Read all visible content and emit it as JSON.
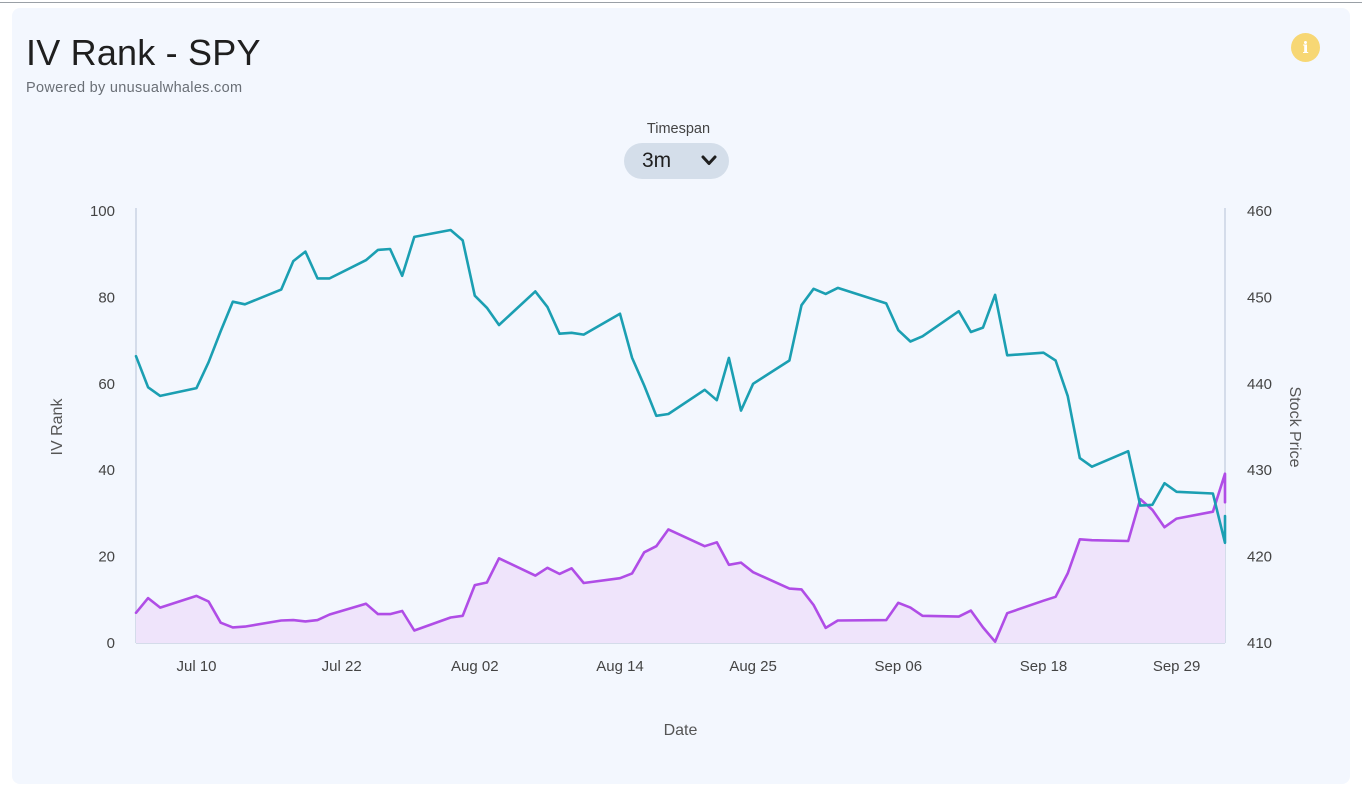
{
  "header": {
    "title": "IV Rank - SPY",
    "subtitle": "Powered by unusualwhales.com",
    "info_icon": "info-icon"
  },
  "timespan": {
    "label": "Timespan",
    "selected": "3m"
  },
  "colors": {
    "price": "#1b9fb2",
    "iv_rank": "#b04de6",
    "iv_fill": "#efe4fb",
    "axis": "#c9d3e3"
  },
  "chart_data": {
    "type": "line",
    "xlabel": "Date",
    "ylabel_left": "IV Rank",
    "ylabel_right": "Stock Price",
    "ylim_left": [
      0,
      100
    ],
    "ylim_right": [
      410,
      460
    ],
    "yticks_left": [
      0,
      20,
      40,
      60,
      80,
      100
    ],
    "yticks_right": [
      410,
      420,
      430,
      440,
      450,
      460
    ],
    "x_range": [
      "2023-07-05",
      "2023-10-03"
    ],
    "x_ticks": [
      {
        "date": "2023-07-10",
        "label": "Jul 10"
      },
      {
        "date": "2023-07-22",
        "label": "Jul 22"
      },
      {
        "date": "2023-08-02",
        "label": "Aug 02"
      },
      {
        "date": "2023-08-14",
        "label": "Aug 14"
      },
      {
        "date": "2023-08-25",
        "label": "Aug 25"
      },
      {
        "date": "2023-09-06",
        "label": "Sep 06"
      },
      {
        "date": "2023-09-18",
        "label": "Sep 18"
      },
      {
        "date": "2023-09-29",
        "label": "Sep 29"
      }
    ],
    "grid": false,
    "series": [
      {
        "name": "Stock Price",
        "axis": "right",
        "points": [
          [
            "2023-07-05",
            443.2
          ],
          [
            "2023-07-06",
            439.6
          ],
          [
            "2023-07-07",
            438.6
          ],
          [
            "2023-07-10",
            439.5
          ],
          [
            "2023-07-11",
            442.5
          ],
          [
            "2023-07-12",
            446.1
          ],
          [
            "2023-07-13",
            449.5
          ],
          [
            "2023-07-14",
            449.2
          ],
          [
            "2023-07-17",
            450.9
          ],
          [
            "2023-07-18",
            454.2
          ],
          [
            "2023-07-19",
            455.3
          ],
          [
            "2023-07-20",
            452.2
          ],
          [
            "2023-07-21",
            452.2
          ],
          [
            "2023-07-24",
            454.3
          ],
          [
            "2023-07-25",
            455.5
          ],
          [
            "2023-07-26",
            455.6
          ],
          [
            "2023-07-27",
            452.5
          ],
          [
            "2023-07-28",
            457.0
          ],
          [
            "2023-07-31",
            457.8
          ],
          [
            "2023-08-01",
            456.6
          ],
          [
            "2023-08-02",
            450.2
          ],
          [
            "2023-08-03",
            448.8
          ],
          [
            "2023-08-04",
            446.8
          ],
          [
            "2023-08-07",
            450.7
          ],
          [
            "2023-08-08",
            448.9
          ],
          [
            "2023-08-09",
            445.8
          ],
          [
            "2023-08-10",
            445.9
          ],
          [
            "2023-08-11",
            445.7
          ],
          [
            "2023-08-14",
            448.1
          ],
          [
            "2023-08-15",
            443.0
          ],
          [
            "2023-08-16",
            439.8
          ],
          [
            "2023-08-17",
            436.3
          ],
          [
            "2023-08-18",
            436.5
          ],
          [
            "2023-08-21",
            439.3
          ],
          [
            "2023-08-22",
            438.1
          ],
          [
            "2023-08-23",
            443.0
          ],
          [
            "2023-08-24",
            436.9
          ],
          [
            "2023-08-25",
            440.0
          ],
          [
            "2023-08-28",
            442.7
          ],
          [
            "2023-08-29",
            449.1
          ],
          [
            "2023-08-30",
            451.0
          ],
          [
            "2023-08-31",
            450.4
          ],
          [
            "2023-09-01",
            451.1
          ],
          [
            "2023-09-05",
            449.3
          ],
          [
            "2023-09-06",
            446.2
          ],
          [
            "2023-09-07",
            444.9
          ],
          [
            "2023-09-08",
            445.5
          ],
          [
            "2023-09-11",
            448.4
          ],
          [
            "2023-09-12",
            446.0
          ],
          [
            "2023-09-13",
            446.5
          ],
          [
            "2023-09-14",
            450.3
          ],
          [
            "2023-09-15",
            443.3
          ],
          [
            "2023-09-18",
            443.6
          ],
          [
            "2023-09-19",
            442.7
          ],
          [
            "2023-09-20",
            438.6
          ],
          [
            "2023-09-21",
            431.4
          ],
          [
            "2023-09-22",
            430.4
          ],
          [
            "2023-09-25",
            432.2
          ],
          [
            "2023-09-26",
            425.9
          ],
          [
            "2023-09-27",
            426.0
          ],
          [
            "2023-09-28",
            428.5
          ],
          [
            "2023-09-29",
            427.5
          ],
          [
            "2023-10-02",
            427.3
          ],
          [
            "2023-10-03",
            421.6
          ],
          [
            "2023-10-04",
            424.7
          ]
        ]
      },
      {
        "name": "IV Rank",
        "axis": "left",
        "points": [
          [
            "2023-07-05",
            7.0
          ],
          [
            "2023-07-06",
            10.4
          ],
          [
            "2023-07-07",
            8.2
          ],
          [
            "2023-07-10",
            10.9
          ],
          [
            "2023-07-11",
            9.6
          ],
          [
            "2023-07-12",
            4.7
          ],
          [
            "2023-07-13",
            3.6
          ],
          [
            "2023-07-14",
            3.8
          ],
          [
            "2023-07-17",
            5.2
          ],
          [
            "2023-07-18",
            5.3
          ],
          [
            "2023-07-19",
            5.0
          ],
          [
            "2023-07-20",
            5.3
          ],
          [
            "2023-07-21",
            6.6
          ],
          [
            "2023-07-24",
            9.1
          ],
          [
            "2023-07-25",
            6.7
          ],
          [
            "2023-07-26",
            6.7
          ],
          [
            "2023-07-27",
            7.4
          ],
          [
            "2023-07-28",
            2.9
          ],
          [
            "2023-07-31",
            5.9
          ],
          [
            "2023-08-01",
            6.3
          ],
          [
            "2023-08-02",
            13.4
          ],
          [
            "2023-08-03",
            14.0
          ],
          [
            "2023-08-04",
            19.6
          ],
          [
            "2023-08-07",
            15.6
          ],
          [
            "2023-08-08",
            17.4
          ],
          [
            "2023-08-09",
            16.0
          ],
          [
            "2023-08-10",
            17.3
          ],
          [
            "2023-08-11",
            13.9
          ],
          [
            "2023-08-14",
            15.0
          ],
          [
            "2023-08-15",
            16.1
          ],
          [
            "2023-08-16",
            21.0
          ],
          [
            "2023-08-17",
            22.4
          ],
          [
            "2023-08-18",
            26.3
          ],
          [
            "2023-08-21",
            22.4
          ],
          [
            "2023-08-22",
            23.3
          ],
          [
            "2023-08-23",
            18.1
          ],
          [
            "2023-08-24",
            18.6
          ],
          [
            "2023-08-25",
            16.4
          ],
          [
            "2023-08-28",
            12.6
          ],
          [
            "2023-08-29",
            12.4
          ],
          [
            "2023-08-30",
            8.8
          ],
          [
            "2023-08-31",
            3.5
          ],
          [
            "2023-09-01",
            5.2
          ],
          [
            "2023-09-05",
            5.3
          ],
          [
            "2023-09-06",
            9.3
          ],
          [
            "2023-09-07",
            8.2
          ],
          [
            "2023-09-08",
            6.3
          ],
          [
            "2023-09-11",
            6.1
          ],
          [
            "2023-09-12",
            7.5
          ],
          [
            "2023-09-13",
            3.6
          ],
          [
            "2023-09-14",
            0.3
          ],
          [
            "2023-09-15",
            6.9
          ],
          [
            "2023-09-18",
            9.8
          ],
          [
            "2023-09-19",
            10.7
          ],
          [
            "2023-09-20",
            16.1
          ],
          [
            "2023-09-21",
            24.0
          ],
          [
            "2023-09-22",
            23.8
          ],
          [
            "2023-09-25",
            23.6
          ],
          [
            "2023-09-26",
            33.3
          ],
          [
            "2023-09-27",
            30.8
          ],
          [
            "2023-09-28",
            26.8
          ],
          [
            "2023-09-29",
            28.8
          ],
          [
            "2023-10-02",
            30.4
          ],
          [
            "2023-10-03",
            39.2
          ],
          [
            "2023-10-04",
            32.6
          ]
        ]
      }
    ]
  }
}
